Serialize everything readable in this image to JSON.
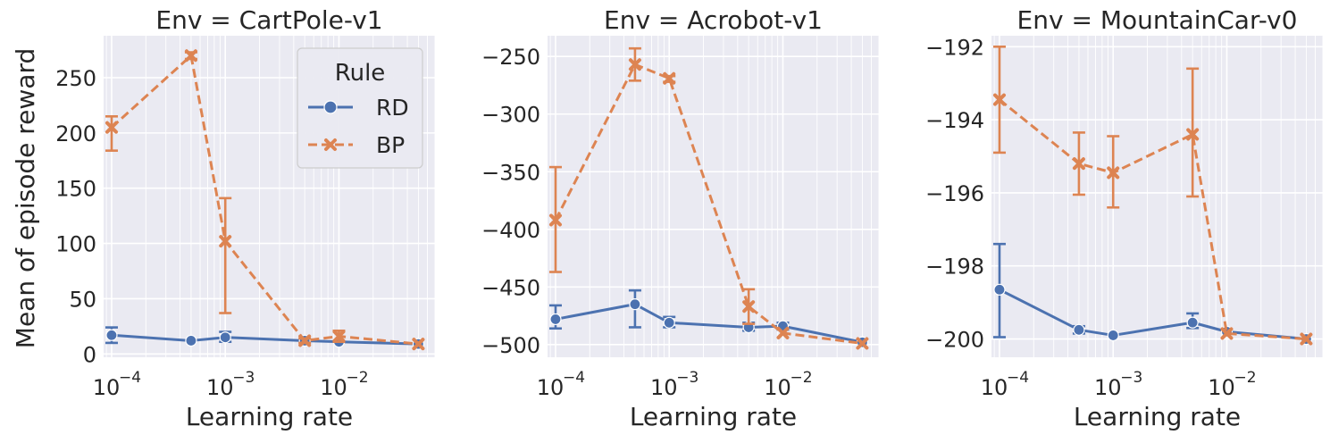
{
  "figure": {
    "ylabel": "Mean of episode reward",
    "xlabel": "Learning rate"
  },
  "legend": {
    "title": "Rule",
    "entries": [
      {
        "label": "RD",
        "marker": "circle",
        "style": "solid"
      },
      {
        "label": "BP",
        "marker": "x",
        "style": "dashed"
      }
    ],
    "placement": "upper-right of first panel"
  },
  "colors": {
    "RD": "#4c72b0",
    "BP": "#dd8452",
    "panel_bg": "#eaeaf2",
    "grid": "#ffffff"
  },
  "chart_data": [
    {
      "type": "line",
      "title": "Env = CartPole-v1",
      "xscale": "log",
      "xlim": [
        8.5e-05,
        0.07
      ],
      "ylim": [
        -3,
        288
      ],
      "yticks": [
        0,
        50,
        100,
        150,
        200,
        250
      ],
      "ytick_labels": [
        "0",
        "50",
        "100",
        "150",
        "200",
        "250"
      ],
      "xticks": [
        0.0001,
        0.001,
        0.01
      ],
      "xtick_labels": [
        "10",
        "10",
        "10"
      ],
      "xtick_exponents": [
        "−4",
        "−3",
        "−2"
      ],
      "grid": true,
      "series": [
        {
          "name": "RD",
          "x": [
            0.0001,
            0.0005,
            0.001,
            0.005,
            0.01,
            0.05
          ],
          "y": [
            17,
            12,
            15,
            12,
            11,
            9
          ],
          "err_low": [
            10,
            null,
            11,
            null,
            null,
            null
          ],
          "err_high": [
            24,
            null,
            20,
            null,
            null,
            null
          ]
        },
        {
          "name": "BP",
          "x": [
            0.0001,
            0.0005,
            0.001,
            0.005,
            0.01,
            0.05
          ],
          "y": [
            205,
            270,
            102,
            12,
            16,
            9
          ],
          "err_low": [
            184,
            267,
            37,
            10,
            11,
            null
          ],
          "err_high": [
            215,
            273,
            141,
            14,
            21,
            null
          ]
        }
      ]
    },
    {
      "type": "line",
      "title": "Env = Acrobot-v1",
      "xscale": "log",
      "xlim": [
        8.5e-05,
        0.07
      ],
      "ylim": [
        -511,
        -232
      ],
      "yticks": [
        -500,
        -450,
        -400,
        -350,
        -300,
        -250
      ],
      "ytick_labels": [
        "−500",
        "−450",
        "−400",
        "−350",
        "−300",
        "−250"
      ],
      "xticks": [
        0.0001,
        0.001,
        0.01
      ],
      "xtick_labels": [
        "10",
        "10",
        "10"
      ],
      "xtick_exponents": [
        "−4",
        "−3",
        "−2"
      ],
      "grid": true,
      "series": [
        {
          "name": "RD",
          "x": [
            0.0001,
            0.0005,
            0.001,
            0.005,
            0.01,
            0.05
          ],
          "y": [
            -478,
            -465,
            -481,
            -485,
            -484,
            -498
          ],
          "err_low": [
            -486,
            -485,
            -485,
            -488,
            -487,
            null
          ],
          "err_high": [
            -466,
            -453,
            -476,
            -481,
            -481,
            null
          ]
        },
        {
          "name": "BP",
          "x": [
            0.0001,
            0.0005,
            0.001,
            0.005,
            0.01,
            0.05
          ],
          "y": [
            -392,
            -257,
            -269,
            -467,
            -490,
            -499
          ],
          "err_low": [
            -437,
            -271,
            -272,
            -482,
            null,
            null
          ],
          "err_high": [
            -346,
            -243,
            -267,
            -452,
            null,
            null
          ]
        }
      ]
    },
    {
      "type": "line",
      "title": "Env = MountainCar-v0",
      "xscale": "log",
      "xlim": [
        8.5e-05,
        0.07
      ],
      "ylim": [
        -200.5,
        -191.7
      ],
      "yticks": [
        -200,
        -198,
        -196,
        -194,
        -192
      ],
      "ytick_labels": [
        "−200",
        "−198",
        "−196",
        "−194",
        "−192"
      ],
      "xticks": [
        0.0001,
        0.001,
        0.01
      ],
      "xtick_labels": [
        "10",
        "10",
        "10"
      ],
      "xtick_exponents": [
        "−4",
        "−3",
        "−2"
      ],
      "grid": true,
      "series": [
        {
          "name": "RD",
          "x": [
            0.0001,
            0.0005,
            0.001,
            0.005,
            0.01,
            0.05
          ],
          "y": [
            -198.65,
            -199.75,
            -199.9,
            -199.55,
            -199.8,
            -200
          ],
          "err_low": [
            -199.95,
            -199.85,
            null,
            -199.7,
            null,
            null
          ],
          "err_high": [
            -197.4,
            -199.65,
            null,
            -199.3,
            null,
            null
          ]
        },
        {
          "name": "BP",
          "x": [
            0.0001,
            0.0005,
            0.001,
            0.005,
            0.01,
            0.05
          ],
          "y": [
            -193.45,
            -195.2,
            -195.45,
            -194.4,
            -199.85,
            -200
          ],
          "err_low": [
            -194.9,
            -196.05,
            -196.4,
            -196.1,
            null,
            null
          ],
          "err_high": [
            -192.0,
            -194.35,
            -194.45,
            -192.6,
            null,
            null
          ]
        }
      ]
    }
  ]
}
